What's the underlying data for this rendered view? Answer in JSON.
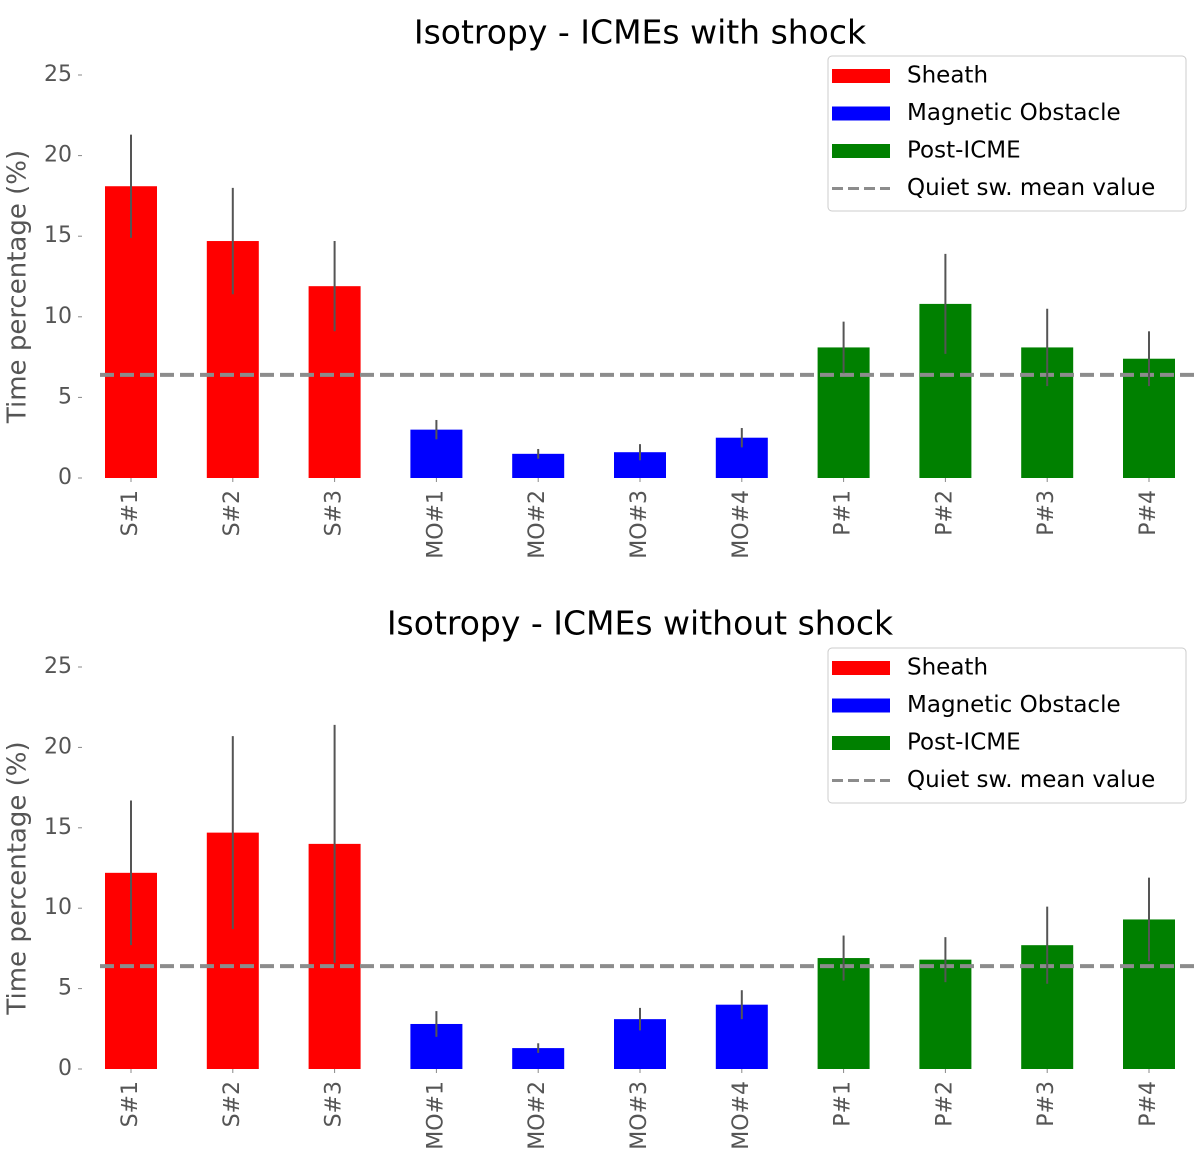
{
  "colors": {
    "sheath": "#ff0000",
    "magnetic_obstacle": "#0000ff",
    "post_icme": "#008000",
    "quiet_line": "#8c8c8c",
    "error_bar": "#555555"
  },
  "chart_data": [
    {
      "type": "bar",
      "title": "Isotropy - ICMEs with shock",
      "ylabel": "Time percentage (%)",
      "ylim": [
        0,
        25
      ],
      "yticks": [
        0,
        5,
        10,
        15,
        20,
        25
      ],
      "grid": false,
      "legend_position": "top-right",
      "categories": [
        "S#1",
        "S#2",
        "S#3",
        "MO#1",
        "MO#2",
        "MO#3",
        "MO#4",
        "P#1",
        "P#2",
        "P#3",
        "P#4"
      ],
      "values": [
        18.1,
        14.7,
        11.9,
        3.0,
        1.5,
        1.6,
        2.5,
        8.1,
        10.8,
        8.1,
        7.4
      ],
      "errors": [
        3.2,
        3.3,
        2.8,
        0.6,
        0.3,
        0.5,
        0.6,
        1.6,
        3.1,
        2.4,
        1.7
      ],
      "groups": [
        "sheath",
        "sheath",
        "sheath",
        "magnetic_obstacle",
        "magnetic_obstacle",
        "magnetic_obstacle",
        "magnetic_obstacle",
        "post_icme",
        "post_icme",
        "post_icme",
        "post_icme"
      ],
      "quiet_mean": 6.4,
      "legend": [
        {
          "label": "Sheath",
          "kind": "patch",
          "color": "#ff0000"
        },
        {
          "label": "Magnetic Obstacle",
          "kind": "patch",
          "color": "#0000ff"
        },
        {
          "label": "Post-ICME",
          "kind": "patch",
          "color": "#008000"
        },
        {
          "label": "Quiet sw. mean value",
          "kind": "dashed",
          "color": "#8c8c8c"
        }
      ]
    },
    {
      "type": "bar",
      "title": "Isotropy - ICMEs without shock",
      "ylabel": "Time percentage (%)",
      "ylim": [
        0,
        25
      ],
      "yticks": [
        0,
        5,
        10,
        15,
        20,
        25
      ],
      "grid": false,
      "legend_position": "top-right",
      "categories": [
        "S#1",
        "S#2",
        "S#3",
        "MO#1",
        "MO#2",
        "MO#3",
        "MO#4",
        "P#1",
        "P#2",
        "P#3",
        "P#4"
      ],
      "values": [
        12.2,
        14.7,
        14.0,
        2.8,
        1.3,
        3.1,
        4.0,
        6.9,
        6.8,
        7.7,
        9.3
      ],
      "errors": [
        4.5,
        6.0,
        7.4,
        0.8,
        0.3,
        0.7,
        0.9,
        1.4,
        1.4,
        2.4,
        2.6
      ],
      "groups": [
        "sheath",
        "sheath",
        "sheath",
        "magnetic_obstacle",
        "magnetic_obstacle",
        "magnetic_obstacle",
        "magnetic_obstacle",
        "post_icme",
        "post_icme",
        "post_icme",
        "post_icme"
      ],
      "quiet_mean": 6.4,
      "legend": [
        {
          "label": "Sheath",
          "kind": "patch",
          "color": "#ff0000"
        },
        {
          "label": "Magnetic Obstacle",
          "kind": "patch",
          "color": "#0000ff"
        },
        {
          "label": "Post-ICME",
          "kind": "patch",
          "color": "#008000"
        },
        {
          "label": "Quiet sw. mean value",
          "kind": "dashed",
          "color": "#8c8c8c"
        }
      ]
    }
  ]
}
